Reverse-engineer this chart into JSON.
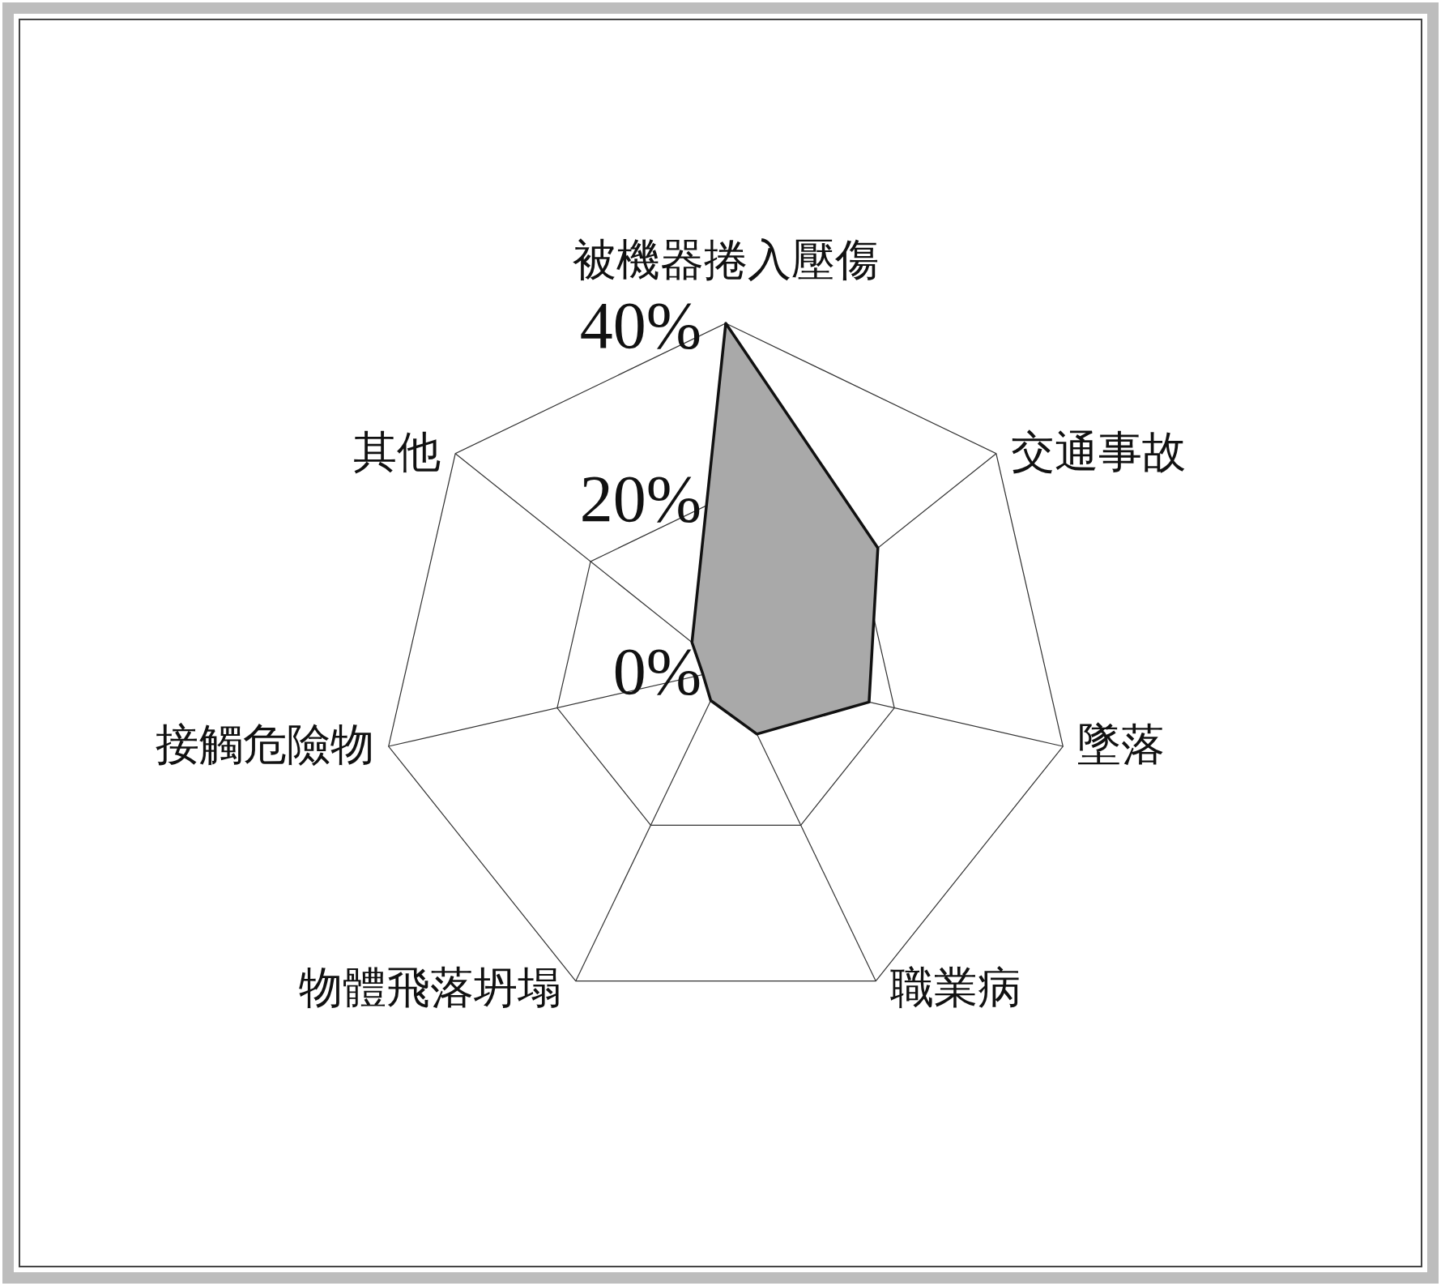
{
  "chart_data": {
    "type": "radar",
    "categories": [
      "被機器捲入壓傷",
      "交通事故",
      "墜落",
      "職業病",
      "物體飛落坍塌",
      "接觸危險物",
      "其他"
    ],
    "series": [
      {
        "color": "#a9a9a9",
        "values": [
          40,
          22.5,
          17,
          8.3,
          4,
          2.7,
          5
        ]
      }
    ],
    "ylim": [
      0,
      40
    ],
    "yticks": [
      {
        "value": 0,
        "label": "0%"
      },
      {
        "value": 20,
        "label": "20%"
      },
      {
        "value": 40,
        "label": "40%"
      }
    ],
    "grid": true
  }
}
